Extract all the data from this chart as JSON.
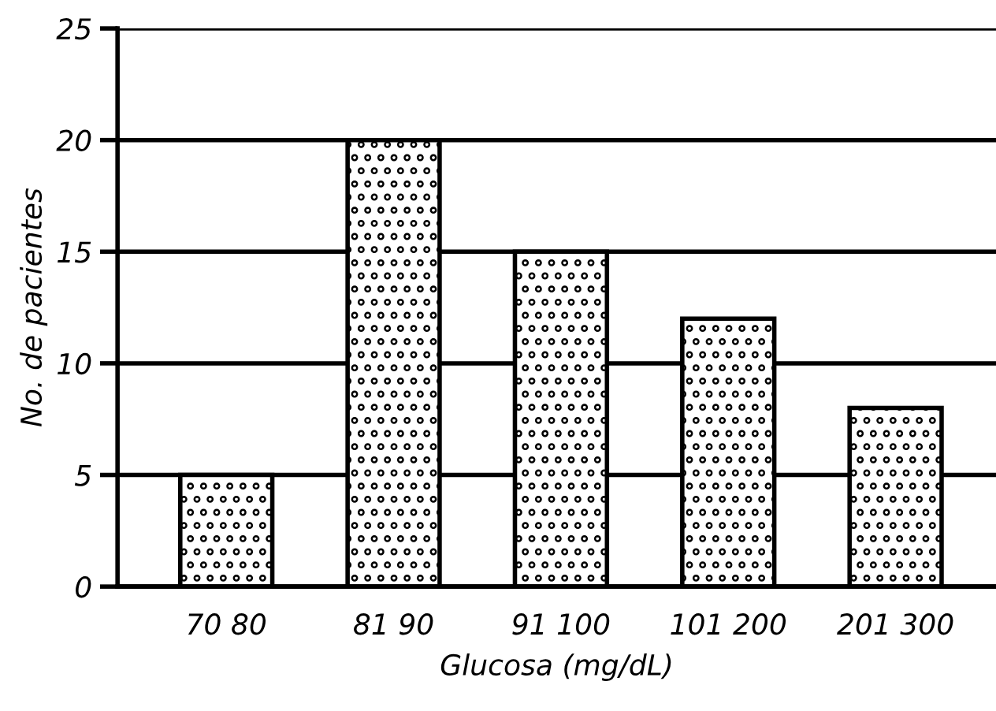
{
  "chart_data": {
    "type": "bar",
    "xlabel": "Glucosa (mg/dL)",
    "ylabel": "No. de pacientes",
    "categories": [
      "70 80",
      "81 90",
      "91 100",
      "101 200",
      "201 300"
    ],
    "values": [
      5,
      20,
      15,
      12,
      8
    ],
    "color": "#000000",
    "ylim": [
      0,
      25
    ],
    "yticks": [
      0,
      5,
      10,
      15,
      20,
      25
    ],
    "grid": "y"
  }
}
